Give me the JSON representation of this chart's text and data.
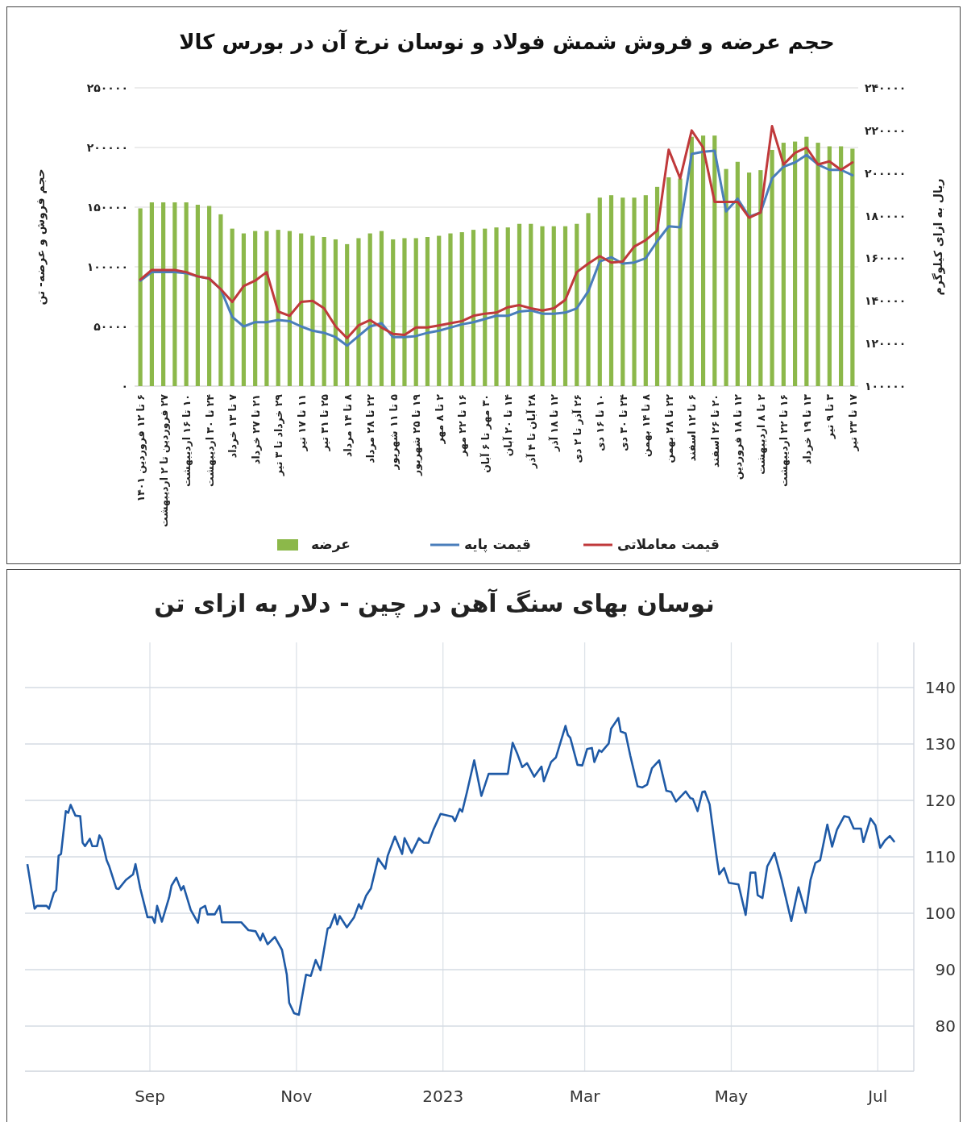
{
  "chart_data": [
    {
      "type": "bar",
      "title": "حجم عرضه و فروش شمش فولاد و نوسان نرخ آن در بورس کالا",
      "ylabel": "حجم فروش و عرضه- تن",
      "y2label": "ریال به ازای کیلوگرم",
      "categories": [
        "۶ تا ۱۲ فروردین ۱۴۰۱",
        null,
        "۲۷ فروردین تا ۲ اردیبهشت",
        null,
        "۱۰ تا ۱۶ اردیبهشت",
        null,
        "۲۴ تا ۳۰ اردیبهشت",
        null,
        "۷ تا ۱۳ خرداد",
        null,
        "۲۱ تا ۲۷ خرداد",
        null,
        "۲۹ خرداد تا ۳ تیر",
        null,
        "۱۱ تا ۱۷ تیر",
        null,
        "۲۵ تا ۳۱ تیر",
        null,
        "۸ تا ۱۴ مرداد",
        null,
        "۲۲ تا ۲۸ مرداد",
        null,
        "۵ تا ۱۱ شهریور",
        null,
        "۱۹ تا ۲۵ شهریور",
        null,
        "۲ تا ۸ مهر",
        null,
        "۱۶ تا ۲۲ مهر",
        null,
        "۳۰ مهر تا ۶ آبان",
        null,
        "۱۴ تا ۲۰ آبان",
        null,
        "۲۸ آبان تا ۴ آذر",
        null,
        "۱۲ تا ۱۸ آذر",
        null,
        "۲۶ آذر تا ۲ دی",
        null,
        "۱۰ تا ۱۶ دی",
        null,
        "۲۴ تا ۳۰ دی",
        null,
        "۸ تا ۱۴ بهمن",
        null,
        "۲۲ تا ۲۸ بهمن",
        null,
        "۶ تا ۱۲ اسفند",
        null,
        "۲۰ تا ۲۶ اسفند",
        null,
        "۱۲ تا ۱۸ فروردین",
        null,
        "۲ تا ۸ اردیبهشت",
        null,
        "۱۶ تا ۲۲ اردیبهشت",
        null,
        "۱۳ تا ۱۹ خرداد",
        null,
        "۳ تا ۹ تیر",
        null,
        "۱۷ تا ۲۳ تیر"
      ],
      "series": [
        {
          "name": "عرضه",
          "type": "bar",
          "color": "#8cb84a",
          "values": [
            149000,
            154000,
            154000,
            154000,
            154000,
            152000,
            151000,
            144000,
            132000,
            128000,
            130000,
            130000,
            131000,
            130000,
            128000,
            126000,
            125000,
            123000,
            119000,
            124000,
            128000,
            130000,
            123000,
            124000,
            124000,
            125000,
            126000,
            128000,
            129000,
            131000,
            132000,
            133000,
            133000,
            136000,
            136000,
            134000,
            134000,
            134000,
            136000,
            145000,
            158000,
            160000,
            158000,
            158000,
            160000,
            167000,
            175000,
            174000,
            209000,
            210000,
            210000,
            182000,
            188000,
            179000,
            181000,
            198000,
            204000,
            205000,
            209000,
            204000,
            201000,
            201000,
            199000
          ]
        },
        {
          "name": "قیمت پایه",
          "type": "line",
          "axis": "y2",
          "color": "#4a7ebb",
          "values": [
            149500,
            153500,
            153500,
            153500,
            153000,
            151500,
            150500,
            145500,
            132500,
            128000,
            130000,
            130000,
            131000,
            130500,
            128000,
            126000,
            125000,
            123000,
            119000,
            123500,
            128000,
            129500,
            123000,
            123000,
            123500,
            125000,
            126000,
            127500,
            129000,
            130000,
            131500,
            133000,
            133000,
            135000,
            135500,
            134000,
            134000,
            134500,
            136500,
            144500,
            158500,
            160500,
            157500,
            158000,
            160000,
            168000,
            175000,
            174500,
            209000,
            210000,
            210500,
            182000,
            188000,
            179500,
            181500,
            197500,
            203000,
            205000,
            208500,
            204000,
            201500,
            201500,
            199000
          ]
        },
        {
          "name": "قیمت معاملاتی",
          "type": "line",
          "axis": "y2",
          "color": "#c0393b",
          "values": [
            150000,
            154500,
            154500,
            154500,
            153500,
            151500,
            150500,
            145500,
            139500,
            147000,
            149500,
            153500,
            135000,
            133000,
            139500,
            140000,
            136500,
            128000,
            122500,
            128500,
            131000,
            127500,
            124500,
            124000,
            127500,
            127500,
            128500,
            129500,
            130500,
            133000,
            134000,
            134500,
            137000,
            138000,
            136500,
            135500,
            136500,
            140500,
            153500,
            157500,
            161000,
            158000,
            158500,
            165500,
            168500,
            173000,
            211000,
            197500,
            220000,
            212000,
            186500,
            186500,
            186500,
            179000,
            181500,
            222000,
            204000,
            209500,
            212000,
            204000,
            205500,
            201500,
            205000
          ]
        }
      ],
      "ylim": [
        0,
        250000
      ],
      "yticks": [
        {
          "value": 0,
          "label": "۰"
        },
        {
          "value": 50000,
          "label": "۵۰۰۰۰"
        },
        {
          "value": 100000,
          "label": "۱۰۰۰۰۰"
        },
        {
          "value": 150000,
          "label": "۱۵۰۰۰۰"
        },
        {
          "value": 200000,
          "label": "۲۰۰۰۰۰"
        },
        {
          "value": 250000,
          "label": "۲۵۰۰۰۰"
        }
      ],
      "y2lim": [
        100000,
        240000
      ],
      "y2ticks": [
        {
          "value": 100000,
          "label": "۱۰۰۰۰۰"
        },
        {
          "value": 120000,
          "label": "۱۲۰۰۰۰"
        },
        {
          "value": 140000,
          "label": "۱۴۰۰۰۰"
        },
        {
          "value": 160000,
          "label": "۱۶۰۰۰۰"
        },
        {
          "value": 180000,
          "label": "۱۸۰۰۰۰"
        },
        {
          "value": 200000,
          "label": "۲۰۰۰۰۰"
        },
        {
          "value": 220000,
          "label": "۲۲۰۰۰۰"
        },
        {
          "value": 240000,
          "label": "۲۴۰۰۰۰"
        }
      ],
      "grid": "y",
      "legend": "bottom"
    },
    {
      "type": "line",
      "title": "نوسان بهای سنگ آهن در چین - دلار به ازای تن",
      "color": "#1f5aa6",
      "x": [
        "2022-07-12",
        "2022-07-15",
        "2022-07-16",
        "2022-07-20",
        "2022-07-21",
        "2022-07-23",
        "2022-07-24",
        "2022-07-25",
        "2022-07-26",
        "2022-07-28",
        "2022-07-29",
        "2022-07-30",
        "2022-08-01",
        "2022-08-03",
        "2022-08-04",
        "2022-08-05",
        "2022-08-07",
        "2022-08-08",
        "2022-08-10",
        "2022-08-11",
        "2022-08-12",
        "2022-08-14",
        "2022-08-15",
        "2022-08-18",
        "2022-08-19",
        "2022-08-22",
        "2022-08-25",
        "2022-08-26",
        "2022-08-28",
        "2022-08-31",
        "2022-09-02",
        "2022-09-03",
        "2022-09-04",
        "2022-09-06",
        "2022-09-09",
        "2022-09-10",
        "2022-09-12",
        "2022-09-14",
        "2022-09-15",
        "2022-09-18",
        "2022-09-21",
        "2022-09-22",
        "2022-09-24",
        "2022-09-25",
        "2022-09-28",
        "2022-09-30",
        "2022-10-01",
        "2022-10-09",
        "2022-10-12",
        "2022-10-15",
        "2022-10-17",
        "2022-10-18",
        "2022-10-20",
        "2022-10-23",
        "2022-10-26",
        "2022-10-28",
        "2022-10-29",
        "2022-10-31",
        "2022-11-02",
        "2022-11-05",
        "2022-11-07",
        "2022-11-09",
        "2022-11-11",
        "2022-11-14",
        "2022-11-15",
        "2022-11-17",
        "2022-11-18",
        "2022-11-19",
        "2022-11-22",
        "2022-11-25",
        "2022-11-27",
        "2022-11-28",
        "2022-11-30",
        "2022-12-02",
        "2022-12-05",
        "2022-12-08",
        "2022-12-09",
        "2022-12-12",
        "2022-12-15",
        "2022-12-16",
        "2022-12-19",
        "2022-12-22",
        "2022-12-24",
        "2022-12-26",
        "2022-12-28",
        "2022-12-31",
        "2023-01-05",
        "2023-01-06",
        "2023-01-08",
        "2023-01-09",
        "2023-01-11",
        "2023-01-14",
        "2023-01-17",
        "2023-01-20",
        "2023-01-28",
        "2023-01-30",
        "2023-02-01",
        "2023-02-03",
        "2023-02-05",
        "2023-02-08",
        "2023-02-11",
        "2023-02-12",
        "2023-02-15",
        "2023-02-17",
        "2023-02-21",
        "2023-02-22",
        "2023-02-23",
        "2023-02-26",
        "2023-02-28",
        "2023-03-02",
        "2023-03-04",
        "2023-03-05",
        "2023-03-07",
        "2023-03-08",
        "2023-03-11",
        "2023-03-12",
        "2023-03-15",
        "2023-03-16",
        "2023-03-18",
        "2023-03-20",
        "2023-03-23",
        "2023-03-25",
        "2023-03-27",
        "2023-03-29",
        "2023-04-01",
        "2023-04-04",
        "2023-04-06",
        "2023-04-08",
        "2023-04-12",
        "2023-04-14",
        "2023-04-15",
        "2023-04-17",
        "2023-04-19",
        "2023-04-20",
        "2023-04-22",
        "2023-04-25",
        "2023-04-26",
        "2023-04-28",
        "2023-04-30",
        "2023-05-04",
        "2023-05-07",
        "2023-05-09",
        "2023-05-11",
        "2023-05-12",
        "2023-05-14",
        "2023-05-16",
        "2023-05-19",
        "2023-05-22",
        "2023-05-26",
        "2023-05-29",
        "2023-06-01",
        "2023-06-03",
        "2023-06-05",
        "2023-06-07",
        "2023-06-10",
        "2023-06-12",
        "2023-06-14",
        "2023-06-17",
        "2023-06-19",
        "2023-06-21",
        "2023-06-24",
        "2023-06-25",
        "2023-06-28",
        "2023-06-30",
        "2023-07-02",
        "2023-07-04",
        "2023-07-06",
        "2023-07-08"
      ],
      "values": [
        108.7,
        100.8,
        101.3,
        101.3,
        100.8,
        103.6,
        104.1,
        110.2,
        110.5,
        118.1,
        117.8,
        119.2,
        117.3,
        117.2,
        112.5,
        111.9,
        113.2,
        111.9,
        111.9,
        113.8,
        113.1,
        109.4,
        108.4,
        104.4,
        104.3,
        105.9,
        106.9,
        108.7,
        104.4,
        99.3,
        99.3,
        98.3,
        101.3,
        98.5,
        102.8,
        104.9,
        106.3,
        104.1,
        104.8,
        100.6,
        98.3,
        100.8,
        101.3,
        99.8,
        99.8,
        101.3,
        98.4,
        98.4,
        97,
        96.8,
        95.2,
        96.4,
        94.5,
        95.8,
        93.5,
        89.1,
        84.1,
        82.3,
        82,
        89.1,
        88.9,
        91.7,
        89.9,
        97.3,
        97.5,
        99.8,
        98,
        99.5,
        97.5,
        99.3,
        101.6,
        100.8,
        103.1,
        104.4,
        109.7,
        107.9,
        110.2,
        113.6,
        110.5,
        113.3,
        110.7,
        113.3,
        112.5,
        112.5,
        114.8,
        117.6,
        117.1,
        116.3,
        118.5,
        118,
        121.5,
        127.1,
        120.8,
        124.7,
        124.7,
        130.2,
        128.2,
        125.9,
        126.6,
        124.2,
        126,
        123.4,
        126.8,
        127.6,
        133.2,
        131.6,
        131.1,
        126.3,
        126.2,
        129.1,
        129.3,
        126.8,
        128.9,
        128.6,
        130.1,
        132.7,
        134.6,
        132.2,
        131.9,
        127.9,
        122.5,
        122.3,
        122.8,
        125.7,
        127.1,
        121.7,
        121.5,
        119.8,
        121.6,
        120.4,
        120.3,
        118.1,
        121.5,
        121.6,
        119.3,
        109.7,
        106.9,
        108,
        105.4,
        105.1,
        99.7,
        107.2,
        107.2,
        103.2,
        102.7,
        108.3,
        110.7,
        105.9,
        98.6,
        104.6,
        100.1,
        105.9,
        108.9,
        109.4,
        115.7,
        111.8,
        114.8,
        117.2,
        117,
        115,
        115,
        112.6,
        116.8,
        115.6,
        111.6,
        112.9,
        113.7,
        112.6
      ],
      "xlim": [
        "2022-07-11",
        "2023-07-16"
      ],
      "xticks": [
        {
          "value": "2022-09-01",
          "label": "Sep"
        },
        {
          "value": "2022-11-01",
          "label": "Nov"
        },
        {
          "value": "2023-01-01",
          "label": "2023"
        },
        {
          "value": "2023-03-01",
          "label": "Mar"
        },
        {
          "value": "2023-05-01",
          "label": "May"
        },
        {
          "value": "2023-07-01",
          "label": "Jul"
        }
      ],
      "ylim": [
        72,
        148
      ],
      "yticks": [
        80,
        90,
        100,
        110,
        120,
        130,
        140
      ],
      "grid": true
    }
  ]
}
